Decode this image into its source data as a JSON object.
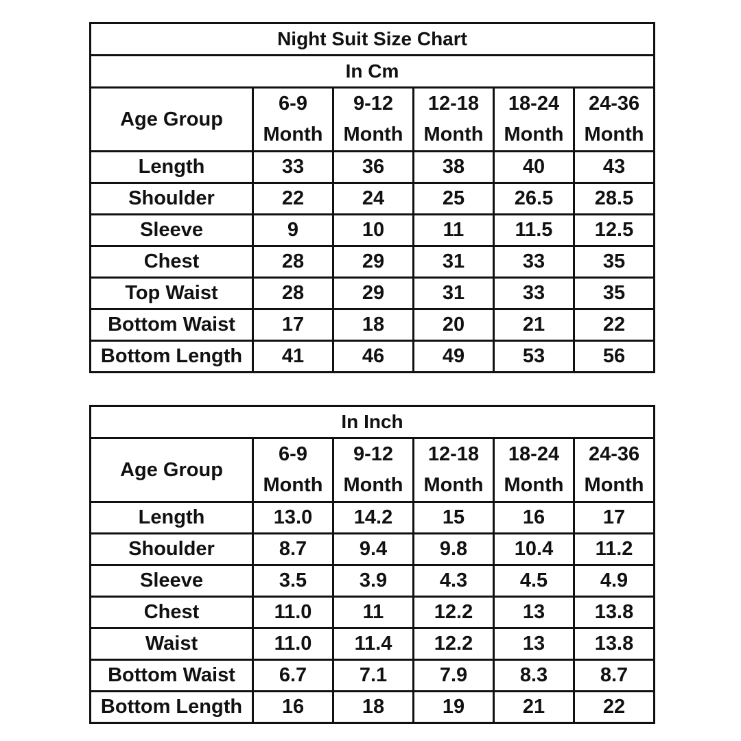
{
  "cm_table": {
    "title": "Night Suit Size Chart",
    "unit": "In Cm",
    "header_label": "Age Group",
    "columns": [
      {
        "range": "6-9",
        "unit": "Month"
      },
      {
        "range": "9-12",
        "unit": "Month"
      },
      {
        "range": "12-18",
        "unit": "Month"
      },
      {
        "range": "18-24",
        "unit": "Month"
      },
      {
        "range": "24-36",
        "unit": "Month"
      }
    ],
    "rows": [
      {
        "label": "Length",
        "values": [
          "33",
          "36",
          "38",
          "40",
          "43"
        ]
      },
      {
        "label": "Shoulder",
        "values": [
          "22",
          "24",
          "25",
          "26.5",
          "28.5"
        ]
      },
      {
        "label": "Sleeve",
        "values": [
          "9",
          "10",
          "11",
          "11.5",
          "12.5"
        ]
      },
      {
        "label": "Chest",
        "values": [
          "28",
          "29",
          "31",
          "33",
          "35"
        ]
      },
      {
        "label": "Top Waist",
        "values": [
          "28",
          "29",
          "31",
          "33",
          "35"
        ]
      },
      {
        "label": "Bottom Waist",
        "values": [
          "17",
          "18",
          "20",
          "21",
          "22"
        ]
      },
      {
        "label": "Bottom Length",
        "values": [
          "41",
          "46",
          "49",
          "53",
          "56"
        ]
      }
    ]
  },
  "inch_table": {
    "unit": "In Inch",
    "header_label": "Age Group",
    "columns": [
      {
        "range": "6-9",
        "unit": "Month"
      },
      {
        "range": "9-12",
        "unit": "Month"
      },
      {
        "range": "12-18",
        "unit": "Month"
      },
      {
        "range": "18-24",
        "unit": "Month"
      },
      {
        "range": "24-36",
        "unit": "Month"
      }
    ],
    "rows": [
      {
        "label": "Length",
        "values": [
          "13.0",
          "14.2",
          "15",
          "16",
          "17"
        ]
      },
      {
        "label": "Shoulder",
        "values": [
          "8.7",
          "9.4",
          "9.8",
          "10.4",
          "11.2"
        ]
      },
      {
        "label": "Sleeve",
        "values": [
          "3.5",
          "3.9",
          "4.3",
          "4.5",
          "4.9"
        ]
      },
      {
        "label": "Chest",
        "values": [
          "11.0",
          "11",
          "12.2",
          "13",
          "13.8"
        ]
      },
      {
        "label": "Waist",
        "values": [
          "11.0",
          "11.4",
          "12.2",
          "13",
          "13.8"
        ]
      },
      {
        "label": "Bottom Waist",
        "values": [
          "6.7",
          "7.1",
          "7.9",
          "8.3",
          "8.7"
        ]
      },
      {
        "label": "Bottom Length",
        "values": [
          "16",
          "18",
          "19",
          "21",
          "22"
        ]
      }
    ]
  }
}
